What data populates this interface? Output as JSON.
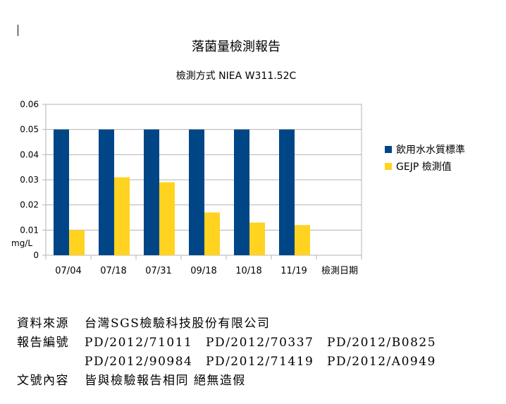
{
  "chart_data": {
    "type": "bar",
    "title": "落菌量檢測報告",
    "subtitle": "檢測方式  NIEA W311.52C",
    "categories": [
      "07/04",
      "07/18",
      "07/31",
      "09/18",
      "10/18",
      "11/19"
    ],
    "xlabel": "檢測日期",
    "ylabel": "mg/L",
    "ylim": [
      0,
      0.06
    ],
    "yticks": [
      "0",
      "0.01",
      "0.02",
      "0.03",
      "0.04",
      "0.05",
      "0.06"
    ],
    "series": [
      {
        "name": "飲用水水質標準",
        "color": "#004586",
        "values": [
          0.05,
          0.05,
          0.05,
          0.05,
          0.05,
          0.05
        ]
      },
      {
        "name": "GEJP 檢測值",
        "color": "#ffd320",
        "values": [
          0.01,
          0.031,
          0.029,
          0.017,
          0.013,
          0.012
        ]
      }
    ],
    "grid": true,
    "legend": "right"
  },
  "notes": {
    "source_label": "資料來源",
    "source_value": "台灣SGS檢驗科技股份有限公司",
    "report_label": "報告編號",
    "report_numbers": [
      "PD/2012/71011",
      "PD/2012/70337",
      "PD/2012/B0825",
      "PD/2012/90984",
      "PD/2012/71419",
      "PD/2012/A0949"
    ],
    "content_label": "文號內容",
    "content_value": "皆與檢驗報告相同 絕無造假"
  }
}
